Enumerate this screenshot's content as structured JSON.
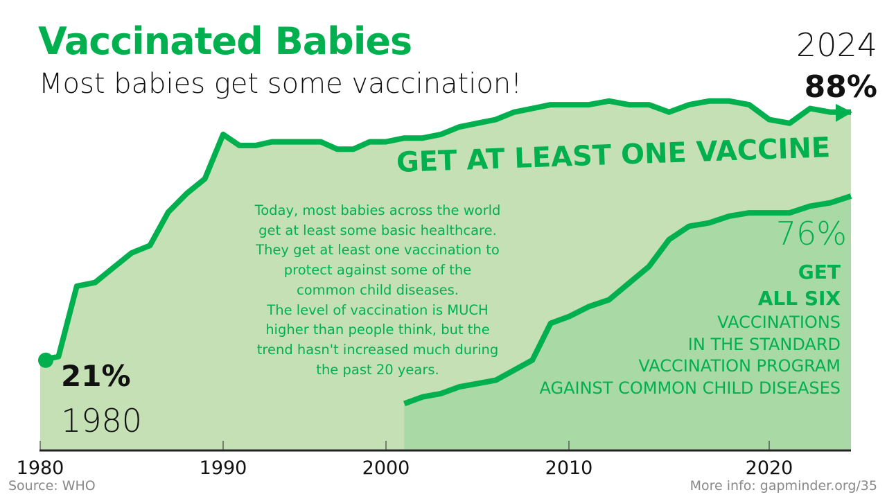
{
  "header": {
    "title": "Vaccinated Babies",
    "subtitle": "Most babies get some vaccination!"
  },
  "colors": {
    "accent": "#00b04f",
    "fill_one": "#c5e0b4",
    "fill_six": "#a9d9a4"
  },
  "annotations": {
    "end_year": "2024",
    "end_value": "88%",
    "start_value": "21%",
    "start_year": "1980",
    "series_label": "GET AT LEAST ONE VACCINE",
    "paragraph": [
      "Today, most babies across the world",
      "get at least some basic healthcare.",
      "They get at least one vaccination to",
      "protect against some of the",
      "common child diseases.",
      "The level of vaccination is MUCH",
      "higher than people think, but the",
      "trend hasn't increased much during",
      "the past 20 years."
    ],
    "six_value": "76%",
    "six_lines_bold": [
      "GET",
      "ALL SIX"
    ],
    "six_lines": [
      "VACCINATIONS",
      "IN THE STANDARD",
      "VACCINATION PROGRAM",
      "AGAINST COMMON CHILD DISEASES"
    ]
  },
  "footer": {
    "source": "Source: WHO",
    "more_info": "More info: gapminder.org/35"
  },
  "chart_data": {
    "type": "area",
    "title": "Vaccinated Babies",
    "xlabel": "",
    "ylabel": "",
    "x_ticks": [
      "1980",
      "1990",
      "2000",
      "2010",
      "2020"
    ],
    "xlim": [
      1980,
      2024
    ],
    "ylim": [
      0,
      100
    ],
    "series": [
      {
        "name": "Get at least one vaccine",
        "x": [
          1980,
          1981,
          1982,
          1983,
          1984,
          1985,
          1986,
          1987,
          1988,
          1989,
          1990,
          1991,
          1992,
          1993,
          1994,
          1995,
          1996,
          1997,
          1998,
          1999,
          2000,
          2001,
          2002,
          2003,
          2004,
          2005,
          2006,
          2007,
          2008,
          2009,
          2010,
          2011,
          2012,
          2013,
          2014,
          2015,
          2016,
          2017,
          2018,
          2019,
          2020,
          2021,
          2022,
          2023,
          2024
        ],
        "values": [
          21,
          22,
          41,
          42,
          46,
          50,
          52,
          61,
          66,
          70,
          82,
          79,
          79,
          80,
          80,
          80,
          80,
          78,
          78,
          80,
          80,
          81,
          81,
          82,
          84,
          85,
          86,
          88,
          89,
          90,
          90,
          90,
          91,
          90,
          90,
          88,
          90,
          91,
          91,
          90,
          86,
          85,
          89,
          88,
          88
        ]
      },
      {
        "name": "Get all six vaccinations",
        "x": [
          2001,
          2002,
          2003,
          2004,
          2005,
          2006,
          2007,
          2008,
          2009,
          2010,
          2011,
          2012,
          2013,
          2014,
          2015,
          2016,
          2017,
          2018,
          2019,
          2020,
          2021,
          2022,
          2023,
          2024
        ],
        "values": [
          14,
          16,
          17,
          19,
          20,
          21,
          24,
          27,
          38,
          40,
          43,
          45,
          50,
          55,
          63,
          67,
          68,
          70,
          71,
          71,
          71,
          73,
          74,
          76
        ]
      }
    ]
  }
}
